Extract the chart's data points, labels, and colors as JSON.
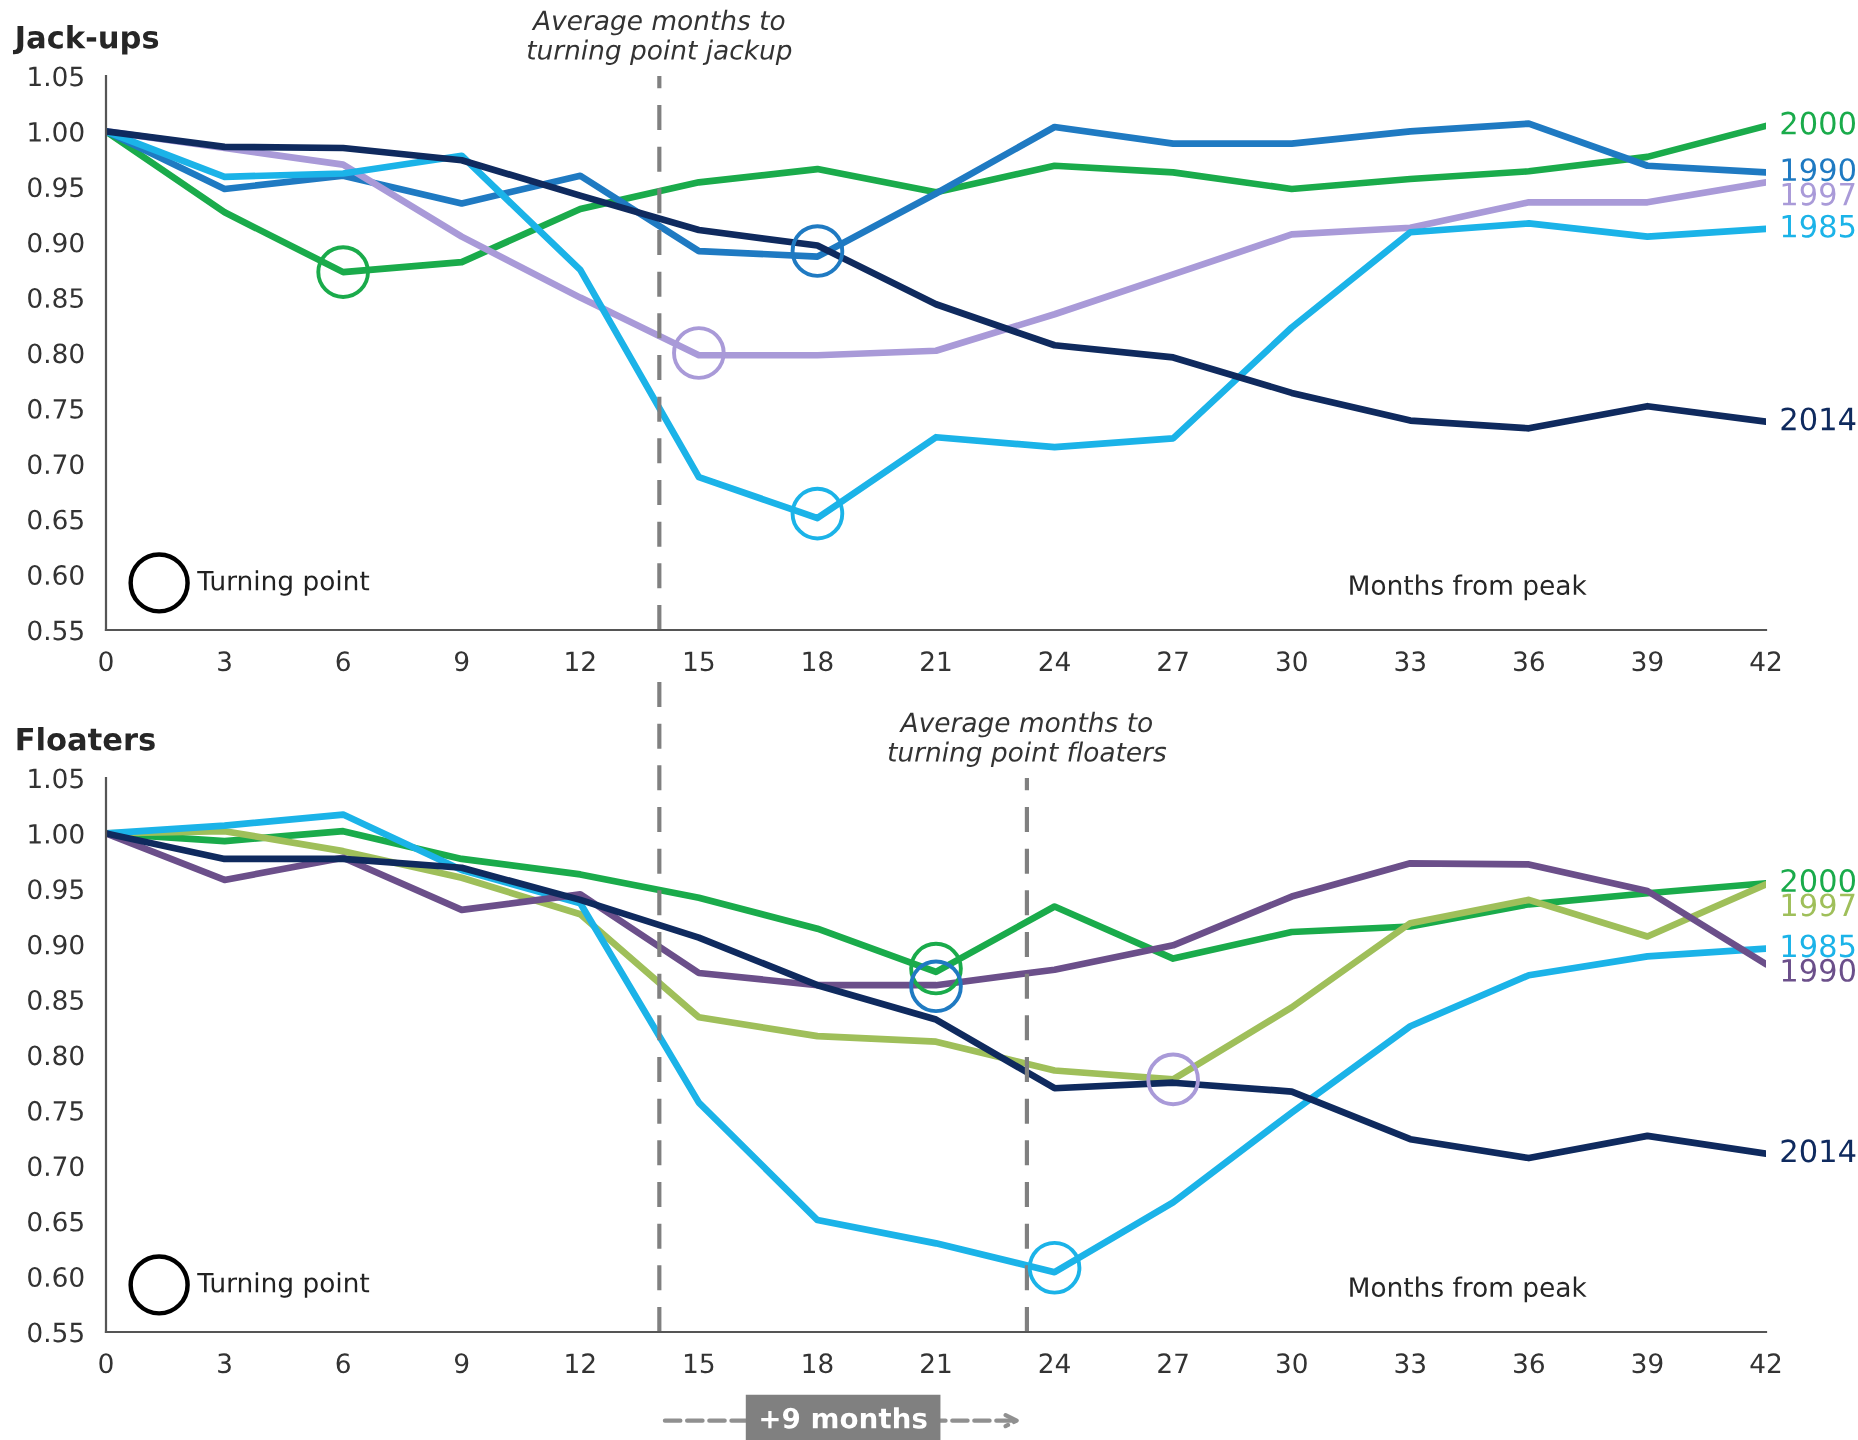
{
  "chart_data": [
    {
      "type": "line",
      "title": "Jack-ups",
      "xlabel": "Months from peak",
      "x": [
        0,
        3,
        6,
        9,
        12,
        15,
        18,
        21,
        24,
        27,
        30,
        33,
        36,
        39,
        42
      ],
      "xlim": [
        0,
        42
      ],
      "xticks": [
        0,
        3,
        6,
        9,
        12,
        15,
        18,
        21,
        24,
        27,
        30,
        33,
        36,
        39,
        42
      ],
      "ylim": [
        0.55,
        1.05
      ],
      "yticks": [
        {
          "value": 0.55,
          "label": "0.55"
        },
        {
          "value": 0.6,
          "label": "0.60"
        },
        {
          "value": 0.65,
          "label": "0.65"
        },
        {
          "value": 0.7,
          "label": "0.70"
        },
        {
          "value": 0.75,
          "label": "0.75"
        },
        {
          "value": 0.8,
          "label": "0.80"
        },
        {
          "value": 0.85,
          "label": "0.85"
        },
        {
          "value": 0.9,
          "label": "0.90"
        },
        {
          "value": 0.95,
          "label": "0.95"
        },
        {
          "value": 1.0,
          "label": "1.00"
        },
        {
          "value": 1.05,
          "label": "1.05"
        }
      ],
      "grid": false,
      "marker": "none",
      "line_style": "solid",
      "ref_lines": [
        {
          "axis": "x",
          "value": 14,
          "label": "Average months to\nturning point jackup",
          "color": "#808080",
          "line_style": "dashed"
        }
      ],
      "annotations": [
        "Turning point"
      ],
      "series": [
        {
          "name": "2000",
          "color": "#1aab4b",
          "values": [
            1.0,
            0.927,
            0.873,
            0.882,
            0.93,
            0.954,
            0.966,
            0.945,
            0.969,
            0.963,
            0.948,
            0.957,
            0.964,
            0.977,
            1.005
          ]
        },
        {
          "name": "1990",
          "color": "#1f7ac2",
          "values": [
            1.0,
            0.948,
            0.96,
            0.935,
            0.96,
            0.892,
            0.887,
            0.944,
            1.004,
            0.989,
            0.989,
            1.0,
            1.007,
            0.969,
            0.963
          ]
        },
        {
          "name": "1997",
          "color": "#a99ad8",
          "values": [
            1.0,
            0.985,
            0.97,
            0.905,
            0.85,
            0.798,
            0.798,
            0.802,
            0.835,
            0.871,
            0.907,
            0.913,
            0.936,
            0.936,
            0.954
          ]
        },
        {
          "name": "1985",
          "color": "#1bb3e8",
          "values": [
            1.0,
            0.959,
            0.962,
            0.978,
            0.875,
            0.688,
            0.651,
            0.724,
            0.715,
            0.723,
            0.823,
            0.909,
            0.917,
            0.905,
            0.912
          ]
        },
        {
          "name": "2014",
          "color": "#0f2a5e",
          "values": [
            1.0,
            0.986,
            0.985,
            0.974,
            0.942,
            0.911,
            0.897,
            0.844,
            0.807,
            0.796,
            0.764,
            0.739,
            0.732,
            0.752,
            0.738
          ]
        },
        {
          "type": "scatter",
          "x": [
            6,
            15,
            18,
            18
          ],
          "values": [
            0.873,
            0.8,
            0.892,
            0.655
          ],
          "colors": [
            "#1aab4b",
            "#a99ad8",
            "#1f7ac2",
            "#1bb3e8"
          ],
          "marker": "circle"
        }
      ]
    },
    {
      "type": "line",
      "title": "Floaters",
      "xlabel": "Months from peak",
      "x": [
        0,
        3,
        6,
        9,
        12,
        15,
        18,
        21,
        24,
        27,
        30,
        33,
        36,
        39,
        42
      ],
      "xlim": [
        0,
        42
      ],
      "xticks": [
        0,
        3,
        6,
        9,
        12,
        15,
        18,
        21,
        24,
        27,
        30,
        33,
        36,
        39,
        42
      ],
      "ylim": [
        0.55,
        1.05
      ],
      "yticks": [
        {
          "value": 0.55,
          "label": "0.55"
        },
        {
          "value": 0.6,
          "label": "0.60"
        },
        {
          "value": 0.65,
          "label": "0.65"
        },
        {
          "value": 0.7,
          "label": "0.70"
        },
        {
          "value": 0.75,
          "label": "0.75"
        },
        {
          "value": 0.8,
          "label": "0.80"
        },
        {
          "value": 0.85,
          "label": "0.85"
        },
        {
          "value": 0.9,
          "label": "0.90"
        },
        {
          "value": 0.95,
          "label": "0.95"
        },
        {
          "value": 1.0,
          "label": "1.00"
        },
        {
          "value": 1.05,
          "label": "1.05"
        }
      ],
      "grid": false,
      "marker": "none",
      "line_style": "solid",
      "ref_lines": [
        {
          "axis": "x",
          "value": 14,
          "color": "#808080",
          "line_style": "dashed"
        },
        {
          "axis": "x",
          "value": 23.3,
          "label": "Average months to\nturning point floaters",
          "color": "#808080",
          "line_style": "dashed"
        }
      ],
      "annotations": [
        "Turning point",
        "+9 months"
      ],
      "series": [
        {
          "name": "2000",
          "color": "#1aab4b",
          "values": [
            1.0,
            0.993,
            1.002,
            0.977,
            0.963,
            0.942,
            0.914,
            0.875,
            0.934,
            0.887,
            0.911,
            0.916,
            0.936,
            0.946,
            0.955
          ]
        },
        {
          "name": "1997",
          "color": "#9fbf5a",
          "values": [
            1.0,
            1.002,
            0.984,
            0.96,
            0.927,
            0.834,
            0.817,
            0.812,
            0.786,
            0.778,
            0.843,
            0.919,
            0.94,
            0.907,
            0.954
          ]
        },
        {
          "name": "1985",
          "color": "#1bb3e8",
          "values": [
            1.0,
            1.007,
            1.017,
            0.967,
            0.937,
            0.757,
            0.651,
            0.63,
            0.604,
            0.667,
            0.748,
            0.826,
            0.872,
            0.889,
            0.896
          ]
        },
        {
          "name": "1990",
          "color": "#6b4f8a",
          "values": [
            1.0,
            0.958,
            0.978,
            0.931,
            0.945,
            0.874,
            0.863,
            0.863,
            0.877,
            0.899,
            0.943,
            0.973,
            0.972,
            0.948,
            0.882
          ]
        },
        {
          "name": "2014",
          "color": "#0f2a5e",
          "values": [
            1.0,
            0.977,
            0.977,
            0.969,
            0.94,
            0.906,
            0.863,
            0.832,
            0.77,
            0.775,
            0.767,
            0.724,
            0.707,
            0.727,
            0.711
          ]
        },
        {
          "type": "scatter",
          "x": [
            21,
            21,
            27,
            24
          ],
          "values": [
            0.878,
            0.862,
            0.778,
            0.608
          ],
          "colors": [
            "#1aab4b",
            "#1f7ac2",
            "#a99ad8",
            "#1bb3e8"
          ],
          "marker": "circle"
        }
      ]
    }
  ]
}
